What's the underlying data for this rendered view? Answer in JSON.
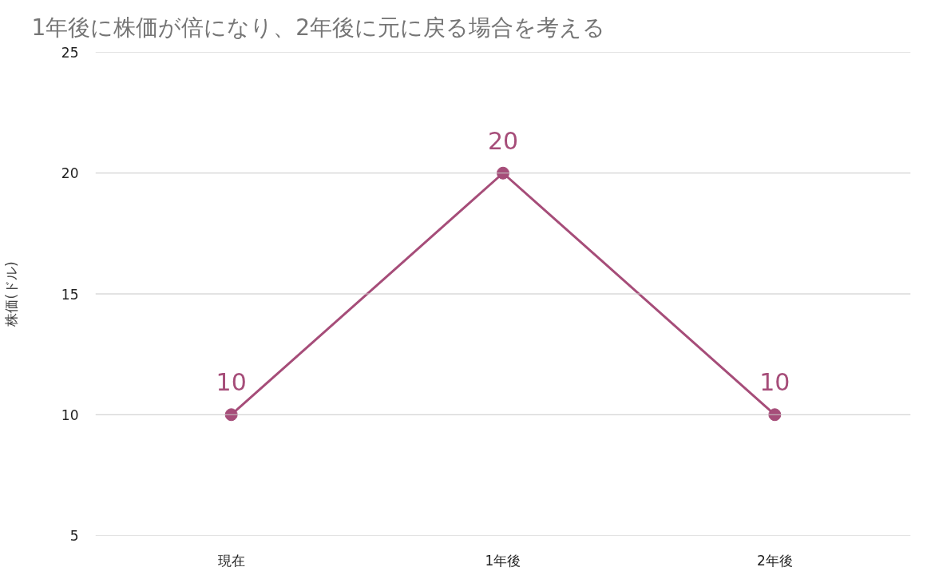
{
  "chart_data": {
    "type": "line",
    "title": "1年後に株価が倍になり、2年後に元に戻る場合を考える",
    "ylabel": "株価(ドル)",
    "categories": [
      "現在",
      "1年後",
      "2年後"
    ],
    "series": [
      {
        "color": "#a64d79",
        "values": [
          10,
          20,
          10
        ]
      }
    ],
    "ylim": [
      5,
      25
    ],
    "yticks": [
      5,
      10,
      15,
      20,
      25
    ],
    "grid": "y",
    "marker": "circle",
    "line_style": "solid",
    "data_labels": true
  }
}
